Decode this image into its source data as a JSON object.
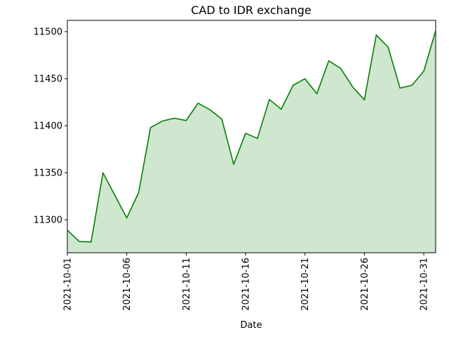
{
  "chart_data": {
    "type": "area",
    "title": "CAD to IDR exchange",
    "xlabel": "Date",
    "ylabel": "",
    "ylim": [
      11265,
      11512
    ],
    "yticks": [
      11300,
      11350,
      11400,
      11450,
      11500
    ],
    "xticks": [
      "2021-10-01",
      "2021-10-06",
      "2021-10-11",
      "2021-10-16",
      "2021-10-21",
      "2021-10-26",
      "2021-10-31"
    ],
    "x": [
      "2021-10-01",
      "2021-10-02",
      "2021-10-03",
      "2021-10-04",
      "2021-10-05",
      "2021-10-06",
      "2021-10-07",
      "2021-10-08",
      "2021-10-09",
      "2021-10-10",
      "2021-10-11",
      "2021-10-12",
      "2021-10-13",
      "2021-10-14",
      "2021-10-15",
      "2021-10-16",
      "2021-10-17",
      "2021-10-18",
      "2021-10-19",
      "2021-10-20",
      "2021-10-21",
      "2021-10-22",
      "2021-10-23",
      "2021-10-24",
      "2021-10-25",
      "2021-10-26",
      "2021-10-27",
      "2021-10-28",
      "2021-10-29",
      "2021-10-30",
      "2021-10-31",
      "2021-11-01"
    ],
    "values": [
      11289,
      11277,
      11276.5,
      11350,
      11326,
      11302,
      11329,
      11398,
      11405,
      11408,
      11405.5,
      11424,
      11417,
      11407,
      11359,
      11392,
      11386.5,
      11428,
      11417.5,
      11443,
      11450,
      11434,
      11469,
      11461,
      11441.5,
      11427.5,
      11496.5,
      11483.5,
      11440,
      11443,
      11458,
      11501
    ],
    "line_color": "#008000",
    "fill_color": "#cfe6cf",
    "grid": false
  }
}
